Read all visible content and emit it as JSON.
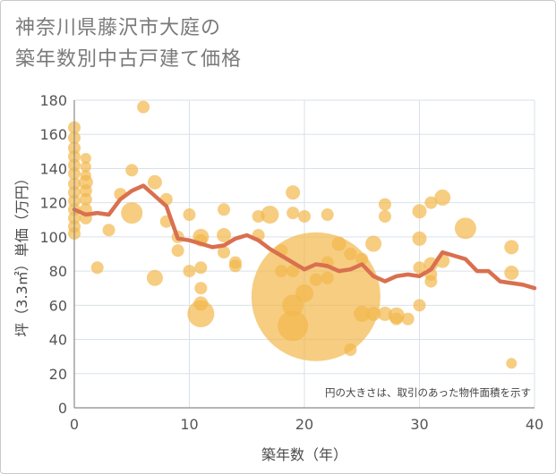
{
  "title": {
    "line1": "神奈川県藤沢市大庭の",
    "line2": "築年数別中古戸建て価格"
  },
  "note": "円の大きさは、取引のあった物件面積を示す",
  "colors": {
    "bubble": "#f2b84b",
    "line": "#d9704f",
    "grid": "#d9e2ea",
    "axis": "#8a8a8a"
  },
  "chart_data": {
    "type": "scatter",
    "xlabel": "築年数（年）",
    "ylabel": "坪（3.3㎡）単価（万円）",
    "xlim": [
      0,
      40
    ],
    "ylim": [
      0,
      180
    ],
    "xticks": [
      0,
      10,
      20,
      30,
      40
    ],
    "yticks": [
      0,
      20,
      40,
      60,
      80,
      100,
      120,
      140,
      160,
      180
    ],
    "bubbles": [
      {
        "x": 0,
        "y": 164,
        "r": 7
      },
      {
        "x": 0,
        "y": 158,
        "r": 7
      },
      {
        "x": 0,
        "y": 152,
        "r": 7
      },
      {
        "x": 0,
        "y": 147,
        "r": 7
      },
      {
        "x": 0,
        "y": 142,
        "r": 7
      },
      {
        "x": 0,
        "y": 137,
        "r": 7
      },
      {
        "x": 0,
        "y": 131,
        "r": 7
      },
      {
        "x": 0,
        "y": 126,
        "r": 7
      },
      {
        "x": 0,
        "y": 121,
        "r": 7
      },
      {
        "x": 0,
        "y": 116,
        "r": 7
      },
      {
        "x": 0,
        "y": 111,
        "r": 7
      },
      {
        "x": 0,
        "y": 106,
        "r": 7
      },
      {
        "x": 0,
        "y": 102,
        "r": 7
      },
      {
        "x": 1,
        "y": 146,
        "r": 6
      },
      {
        "x": 1,
        "y": 141,
        "r": 6
      },
      {
        "x": 1,
        "y": 136,
        "r": 6
      },
      {
        "x": 1,
        "y": 132,
        "r": 8
      },
      {
        "x": 1,
        "y": 127,
        "r": 7
      },
      {
        "x": 1,
        "y": 122,
        "r": 7
      },
      {
        "x": 1,
        "y": 116,
        "r": 7
      },
      {
        "x": 1,
        "y": 111,
        "r": 7
      },
      {
        "x": 2,
        "y": 82,
        "r": 7
      },
      {
        "x": 3,
        "y": 104,
        "r": 7
      },
      {
        "x": 4,
        "y": 125,
        "r": 7
      },
      {
        "x": 5,
        "y": 139,
        "r": 7
      },
      {
        "x": 5,
        "y": 114,
        "r": 12
      },
      {
        "x": 6,
        "y": 176,
        "r": 7
      },
      {
        "x": 7,
        "y": 132,
        "r": 8
      },
      {
        "x": 7,
        "y": 76,
        "r": 9
      },
      {
        "x": 8,
        "y": 122,
        "r": 7
      },
      {
        "x": 8,
        "y": 109,
        "r": 7
      },
      {
        "x": 9,
        "y": 100,
        "r": 7
      },
      {
        "x": 9,
        "y": 92,
        "r": 7
      },
      {
        "x": 10,
        "y": 113,
        "r": 7
      },
      {
        "x": 10,
        "y": 80,
        "r": 7
      },
      {
        "x": 11,
        "y": 100,
        "r": 9
      },
      {
        "x": 11,
        "y": 98,
        "r": 7
      },
      {
        "x": 11,
        "y": 82,
        "r": 7
      },
      {
        "x": 11,
        "y": 70,
        "r": 7
      },
      {
        "x": 11,
        "y": 61,
        "r": 8
      },
      {
        "x": 11,
        "y": 55,
        "r": 15
      },
      {
        "x": 13,
        "y": 116,
        "r": 7
      },
      {
        "x": 13,
        "y": 101,
        "r": 8
      },
      {
        "x": 13,
        "y": 91,
        "r": 7
      },
      {
        "x": 14,
        "y": 85,
        "r": 7
      },
      {
        "x": 14,
        "y": 83,
        "r": 7
      },
      {
        "x": 16,
        "y": 112,
        "r": 7
      },
      {
        "x": 16,
        "y": 101,
        "r": 7
      },
      {
        "x": 17,
        "y": 113,
        "r": 10
      },
      {
        "x": 18,
        "y": 92,
        "r": 7
      },
      {
        "x": 18,
        "y": 80,
        "r": 7
      },
      {
        "x": 19,
        "y": 126,
        "r": 8
      },
      {
        "x": 19,
        "y": 114,
        "r": 7
      },
      {
        "x": 19,
        "y": 80,
        "r": 7
      },
      {
        "x": 19,
        "y": 60,
        "r": 12
      },
      {
        "x": 19,
        "y": 48,
        "r": 17
      },
      {
        "x": 20,
        "y": 112,
        "r": 7
      },
      {
        "x": 20,
        "y": 67,
        "r": 10
      },
      {
        "x": 21,
        "y": 65,
        "r": 72
      },
      {
        "x": 21,
        "y": 75,
        "r": 7
      },
      {
        "x": 22,
        "y": 113,
        "r": 7
      },
      {
        "x": 22,
        "y": 85,
        "r": 7
      },
      {
        "x": 22,
        "y": 76,
        "r": 7
      },
      {
        "x": 23,
        "y": 96,
        "r": 8
      },
      {
        "x": 24,
        "y": 90,
        "r": 7
      },
      {
        "x": 24,
        "y": 34,
        "r": 7
      },
      {
        "x": 25,
        "y": 55,
        "r": 9
      },
      {
        "x": 25,
        "y": 87,
        "r": 7
      },
      {
        "x": 26,
        "y": 96,
        "r": 9
      },
      {
        "x": 26,
        "y": 55,
        "r": 8
      },
      {
        "x": 27,
        "y": 119,
        "r": 7
      },
      {
        "x": 27,
        "y": 112,
        "r": 7
      },
      {
        "x": 27,
        "y": 55,
        "r": 8
      },
      {
        "x": 28,
        "y": 54,
        "r": 9
      },
      {
        "x": 28,
        "y": 52,
        "r": 7
      },
      {
        "x": 29,
        "y": 52,
        "r": 7
      },
      {
        "x": 30,
        "y": 115,
        "r": 8
      },
      {
        "x": 30,
        "y": 99,
        "r": 8
      },
      {
        "x": 30,
        "y": 82,
        "r": 7
      },
      {
        "x": 30,
        "y": 60,
        "r": 7
      },
      {
        "x": 31,
        "y": 120,
        "r": 7
      },
      {
        "x": 31,
        "y": 84,
        "r": 8
      },
      {
        "x": 31,
        "y": 78,
        "r": 7
      },
      {
        "x": 31,
        "y": 74,
        "r": 7
      },
      {
        "x": 32,
        "y": 123,
        "r": 9
      },
      {
        "x": 32,
        "y": 86,
        "r": 8
      },
      {
        "x": 34,
        "y": 105,
        "r": 12
      },
      {
        "x": 38,
        "y": 94,
        "r": 8
      },
      {
        "x": 38,
        "y": 79,
        "r": 8
      },
      {
        "x": 38,
        "y": 26,
        "r": 6
      }
    ],
    "series": [
      {
        "x": [
          0,
          1,
          2,
          3,
          4,
          5,
          6,
          7,
          8,
          9,
          10,
          11,
          12,
          13,
          14,
          15,
          16,
          17,
          18,
          19,
          20,
          21,
          22,
          23,
          24,
          25,
          26,
          27,
          28,
          29,
          30,
          31,
          32,
          33,
          34,
          35,
          36,
          37,
          38,
          39,
          40
        ],
        "y": [
          116,
          113,
          114,
          113,
          122,
          127,
          130,
          124,
          118,
          99,
          98,
          96,
          94,
          95,
          99,
          101,
          98,
          93,
          89,
          85,
          81,
          84,
          83,
          80,
          81,
          84,
          77,
          74,
          77,
          78,
          77,
          81,
          91,
          89,
          87,
          80,
          80,
          74,
          73,
          72,
          70
        ]
      }
    ]
  }
}
